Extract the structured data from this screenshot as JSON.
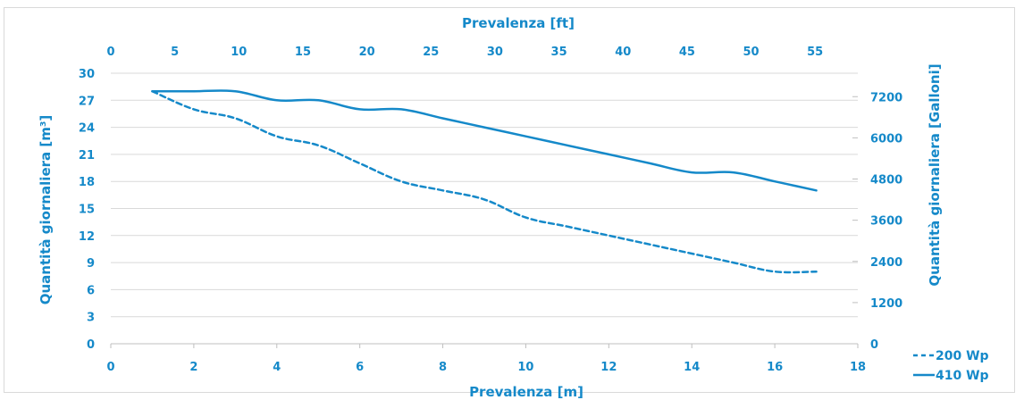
{
  "chart_data": {
    "type": "line",
    "x_bottom_label": "Prevalenza [m]",
    "x_top_label": "Prevalenza [ft]",
    "y_left_label": "Quantità giornaliera [m³]",
    "y_right_label": "Quantità giornaliera [Galloni]",
    "x_bottom_range": [
      0,
      18
    ],
    "x_bottom_ticks": [
      "0",
      "2",
      "4",
      "6",
      "8",
      "10",
      "12",
      "14",
      "16",
      "18"
    ],
    "x_top_ticks": [
      "0",
      "5",
      "10",
      "15",
      "20",
      "25",
      "30",
      "35",
      "40",
      "45",
      "50",
      "55"
    ],
    "y_left_range": [
      0,
      30
    ],
    "y_left_ticks": [
      "0",
      "3",
      "6",
      "9",
      "12",
      "15",
      "18",
      "21",
      "24",
      "27",
      "30"
    ],
    "y_right_ticks": [
      "0",
      "1200",
      "2400",
      "3600",
      "4800",
      "6000",
      "7200"
    ],
    "grid": "horizontal",
    "legend_position": "bottom-right",
    "colors": {
      "series": "#1589c9",
      "grid": "#d9d9d9",
      "axis": "#bfbfbf"
    },
    "series": [
      {
        "name": "200 Wp",
        "style": "dashed",
        "x": [
          1,
          2,
          3,
          4,
          5,
          6,
          7,
          8,
          9,
          10,
          11,
          12,
          13,
          14,
          15,
          16,
          17
        ],
        "y": [
          28,
          26,
          25,
          23,
          22,
          20,
          18,
          17,
          16,
          14,
          13,
          12,
          11,
          10,
          9,
          8,
          8
        ]
      },
      {
        "name": "410 Wp",
        "style": "solid",
        "x": [
          1,
          2,
          3,
          4,
          5,
          6,
          7,
          8,
          9,
          10,
          11,
          12,
          13,
          14,
          15,
          16,
          17
        ],
        "y": [
          28,
          28,
          28,
          27,
          27,
          26,
          26,
          25,
          24,
          23,
          22,
          21,
          20,
          19,
          19,
          18,
          17
        ]
      }
    ]
  }
}
